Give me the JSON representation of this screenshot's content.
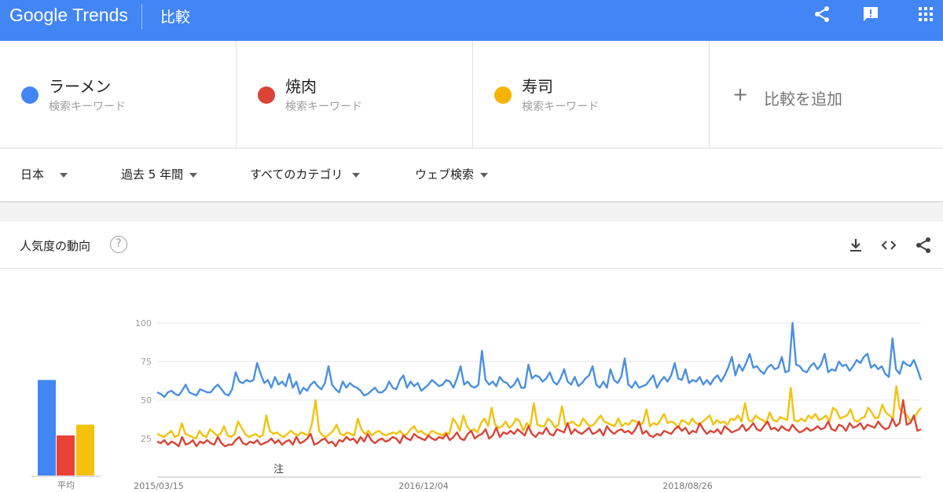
{
  "header": {
    "logo": "Google Trends",
    "title": "比較",
    "icons": [
      "share-icon",
      "feedback-icon",
      "apps-icon"
    ]
  },
  "terms": [
    {
      "name": "ラーメン",
      "sub": "検索キーワード",
      "color": "#4285f4"
    },
    {
      "name": "焼肉",
      "sub": "検索キーワード",
      "color": "#db4437"
    },
    {
      "name": "寿司",
      "sub": "検索キーワード",
      "color": "#f4b400"
    }
  ],
  "add_term": {
    "label": "比較を追加",
    "icon": "plus-icon"
  },
  "filters": {
    "region": "日本",
    "time": "過去 5 年間",
    "category": "すべてのカテゴリ",
    "search_type": "ウェブ検索"
  },
  "trend_card": {
    "title": "人気度の動向",
    "help": "?",
    "icons": [
      "download-icon",
      "embed-icon",
      "share-icon"
    ]
  },
  "chart_data": {
    "type": "line",
    "y_ticks": [
      "100",
      "75",
      "50",
      "25"
    ],
    "ylim": [
      0,
      100
    ],
    "x_labels": [
      "2015/03/15",
      "2016/12/04",
      "2018/08/26"
    ],
    "annotation": "注",
    "average_label": "平均",
    "average": {
      "ラーメン": 62,
      "焼肉": 26,
      "寿司": 33
    },
    "series": [
      {
        "name": "ラーメン",
        "color": "#4a90e2",
        "values": [
          55,
          54,
          52,
          55,
          56,
          54,
          53,
          56,
          60,
          55,
          54,
          53,
          57,
          56,
          55,
          55,
          58,
          60,
          57,
          54,
          53,
          57,
          68,
          62,
          61,
          63,
          62,
          63,
          74,
          67,
          61,
          63,
          58,
          65,
          60,
          62,
          59,
          67,
          58,
          62,
          54,
          58,
          56,
          60,
          62,
          59,
          57,
          61,
          72,
          60,
          57,
          55,
          62,
          58,
          61,
          59,
          58,
          56,
          53,
          54,
          56,
          58,
          55,
          55,
          57,
          62,
          58,
          57,
          63,
          66,
          58,
          62,
          59,
          61,
          56,
          58,
          60,
          63,
          61,
          59,
          60,
          63,
          62,
          58,
          64,
          72,
          60,
          62,
          59,
          58,
          60,
          82,
          63,
          60,
          62,
          59,
          65,
          62,
          61,
          58,
          60,
          64,
          58,
          58,
          73,
          64,
          66,
          65,
          62,
          64,
          68,
          62,
          60,
          64,
          70,
          62,
          60,
          65,
          59,
          61,
          64,
          66,
          72,
          60,
          58,
          62,
          58,
          70,
          63,
          61,
          65,
          77,
          60,
          58,
          62,
          58,
          59,
          60,
          63,
          66,
          58,
          62,
          65,
          62,
          66,
          74,
          64,
          63,
          70,
          61,
          63,
          62,
          65,
          60,
          63,
          60,
          64,
          66,
          62,
          66,
          71,
          78,
          66,
          73,
          69,
          74,
          80,
          71,
          72,
          69,
          67,
          71,
          73,
          70,
          71,
          78,
          68,
          69,
          100,
          73,
          72,
          69,
          68,
          72,
          74,
          70,
          73,
          80,
          68,
          70,
          69,
          75,
          72,
          73,
          69,
          72,
          76,
          74,
          78,
          80,
          71,
          73,
          70,
          72,
          67,
          65,
          90,
          70,
          67,
          75,
          73,
          72,
          76,
          70,
          63
        ]
      },
      {
        "name": "焼肉",
        "color": "#db4437",
        "values": [
          23,
          22,
          24,
          21,
          23,
          22,
          20,
          26,
          21,
          22,
          24,
          20,
          23,
          22,
          24,
          22,
          21,
          26,
          22,
          20,
          21,
          21,
          24,
          26,
          22,
          21,
          23,
          22,
          24,
          21,
          22,
          23,
          25,
          22,
          24,
          21,
          23,
          24,
          21,
          26,
          22,
          23,
          25,
          28,
          21,
          22,
          24,
          25,
          22,
          23,
          20,
          24,
          23,
          26,
          24,
          25,
          22,
          26,
          23,
          28,
          24,
          22,
          24,
          25,
          23,
          24,
          26,
          25,
          22,
          27,
          25,
          24,
          28,
          26,
          25,
          24,
          27,
          25,
          24,
          26,
          25,
          28,
          24,
          26,
          29,
          25,
          24,
          28,
          30,
          25,
          27,
          28,
          31,
          25,
          27,
          32,
          26,
          29,
          28,
          30,
          28,
          31,
          29,
          27,
          33,
          28,
          26,
          29,
          28,
          32,
          28,
          27,
          31,
          30,
          29,
          35,
          28,
          31,
          29,
          28,
          30,
          32,
          28,
          29,
          31,
          27,
          33,
          30,
          28,
          30,
          31,
          29,
          30,
          28,
          31,
          36,
          28,
          30,
          27,
          26,
          28,
          27,
          30,
          29,
          28,
          31,
          33,
          30,
          32,
          28,
          30,
          29,
          35,
          31,
          28,
          30,
          29,
          31,
          28,
          33,
          31,
          29,
          30,
          31,
          34,
          30,
          32,
          35,
          31,
          30,
          33,
          36,
          31,
          32,
          30,
          33,
          31,
          30,
          34,
          31,
          29,
          30,
          32,
          30,
          31,
          33,
          31,
          32,
          36,
          31,
          30,
          34,
          33,
          30,
          35,
          32,
          33,
          35,
          31,
          34,
          33,
          32,
          36,
          33,
          31,
          32,
          38,
          33,
          35,
          50,
          34,
          35,
          40,
          30,
          31
        ]
      },
      {
        "name": "寿司",
        "color": "#f4c20d",
        "values": [
          28,
          27,
          26,
          28,
          30,
          26,
          27,
          35,
          28,
          27,
          26,
          25,
          30,
          27,
          26,
          31,
          29,
          27,
          28,
          33,
          27,
          26,
          28,
          36,
          32,
          28,
          26,
          27,
          28,
          26,
          27,
          40,
          30,
          28,
          29,
          27,
          26,
          28,
          30,
          28,
          27,
          29,
          28,
          27,
          35,
          50,
          30,
          27,
          26,
          28,
          30,
          34,
          28,
          27,
          29,
          28,
          27,
          38,
          31,
          28,
          30,
          27,
          29,
          30,
          28,
          27,
          28,
          29,
          28,
          30,
          27,
          28,
          31,
          33,
          29,
          30,
          28,
          27,
          30,
          29,
          28,
          27,
          29,
          28,
          38,
          35,
          30,
          40,
          33,
          30,
          31,
          29,
          35,
          38,
          33,
          45,
          34,
          32,
          33,
          36,
          32,
          34,
          38,
          36,
          30,
          35,
          33,
          48,
          34,
          33,
          33,
          38,
          36,
          32,
          34,
          46,
          34,
          35,
          36,
          34,
          33,
          38,
          35,
          33,
          34,
          37,
          40,
          36,
          35,
          34,
          33,
          38,
          33,
          35,
          34,
          37,
          36,
          34,
          35,
          44,
          33,
          35,
          34,
          37,
          41,
          35,
          36,
          35,
          32,
          37,
          36,
          34,
          38,
          35,
          34,
          36,
          38,
          40,
          34,
          37,
          35,
          36,
          34,
          38,
          37,
          40,
          36,
          48,
          37,
          36,
          40,
          38,
          37,
          35,
          42,
          37,
          36,
          39,
          38,
          37,
          58,
          37,
          36,
          38,
          36,
          40,
          38,
          41,
          37,
          38,
          40,
          36,
          45,
          43,
          38,
          39,
          40,
          44,
          37,
          36,
          38,
          39,
          45,
          42,
          38,
          39,
          47,
          42,
          40,
          38,
          59,
          44,
          42,
          40,
          36,
          38,
          42,
          45
        ]
      }
    ]
  }
}
